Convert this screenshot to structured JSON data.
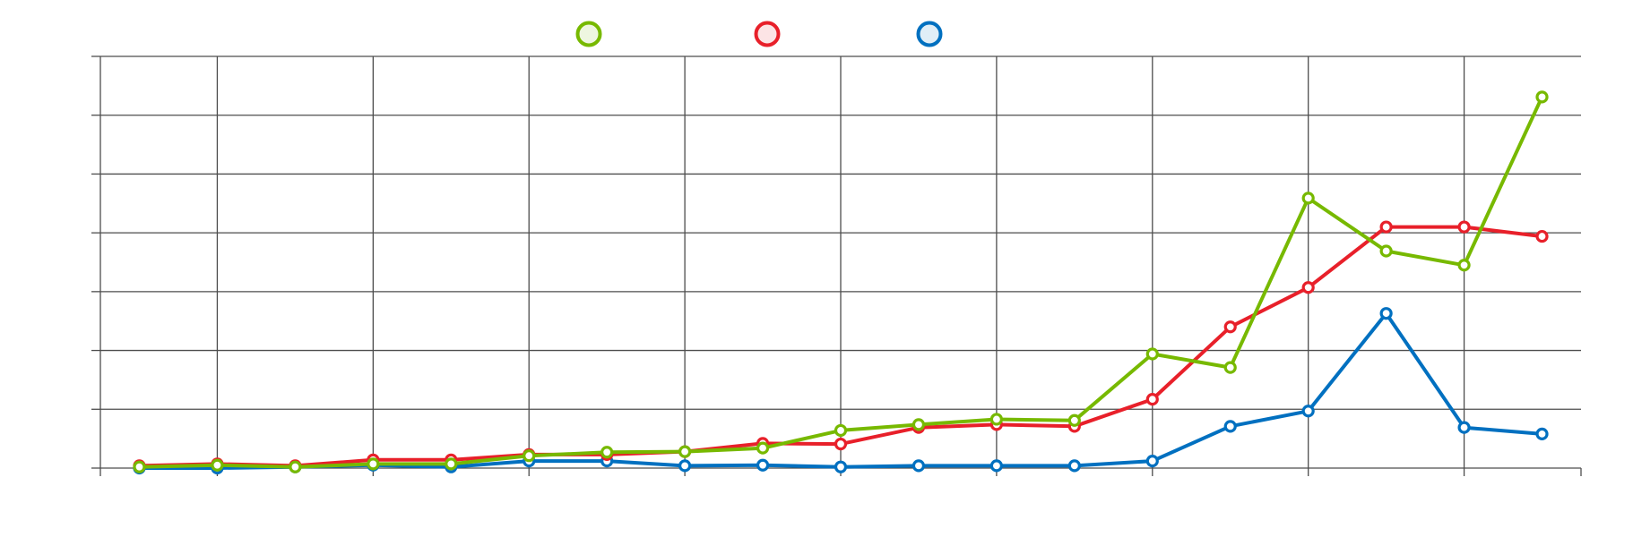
{
  "chart_data": {
    "type": "line",
    "categories": [
      null,
      null,
      null,
      null,
      null,
      null,
      null,
      null,
      null,
      null,
      null,
      null,
      null,
      null,
      null,
      null,
      null,
      null,
      null
    ],
    "series": [
      {
        "color": "#77b900",
        "values": [
          0.02,
          0.05,
          0.02,
          0.07,
          0.07,
          0.21,
          0.27,
          0.28,
          0.34,
          0.64,
          0.74,
          0.83,
          0.81,
          1.94,
          1.71,
          4.59,
          3.69,
          3.45,
          6.31
        ]
      },
      {
        "color": "#e8202a",
        "values": [
          0.04,
          0.07,
          0.04,
          0.14,
          0.14,
          0.23,
          0.23,
          0.28,
          0.42,
          0.41,
          0.69,
          0.74,
          0.71,
          1.17,
          2.4,
          3.07,
          4.1,
          4.1,
          3.94
        ]
      },
      {
        "color": "#0070c0",
        "values": [
          0,
          0,
          0.02,
          0.05,
          0.02,
          0.12,
          0.12,
          0.04,
          0.05,
          0.02,
          0.04,
          0.04,
          0.04,
          0.12,
          0.71,
          0.97,
          2.63,
          0.69,
          0.58
        ]
      }
    ],
    "ylim": [
      0,
      7
    ],
    "yticks": [
      0,
      1,
      2,
      3,
      4,
      5,
      6,
      7
    ],
    "grid": true,
    "legend": "top"
  }
}
